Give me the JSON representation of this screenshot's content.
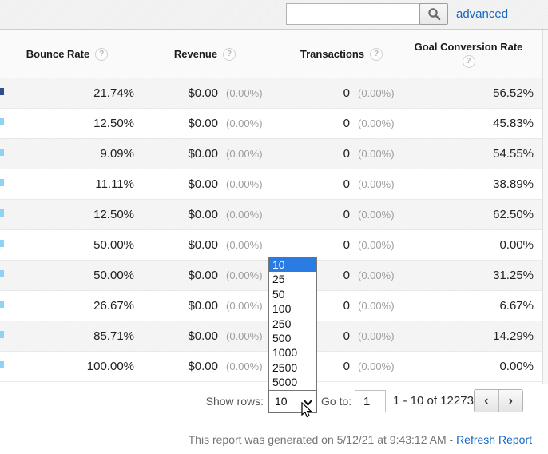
{
  "topbar": {
    "search_value": "",
    "search_placeholder": "",
    "advanced_label": "advanced",
    "search_icon": "magnifier"
  },
  "table": {
    "columns": [
      {
        "label": "Bounce Rate",
        "help_icon": "?"
      },
      {
        "label": "Revenue",
        "help_icon": "?"
      },
      {
        "label": "Transactions",
        "help_icon": "?"
      },
      {
        "label": "Goal Conversion Rate",
        "help_icon": "?"
      }
    ],
    "rows": [
      {
        "bounce_rate": "21.74%",
        "revenue": "$0.00",
        "revenue_pct": "(0.00%)",
        "transactions": "0",
        "transactions_pct": "(0.00%)",
        "goal_conversion_rate": "56.52%"
      },
      {
        "bounce_rate": "12.50%",
        "revenue": "$0.00",
        "revenue_pct": "(0.00%)",
        "transactions": "0",
        "transactions_pct": "(0.00%)",
        "goal_conversion_rate": "45.83%"
      },
      {
        "bounce_rate": "9.09%",
        "revenue": "$0.00",
        "revenue_pct": "(0.00%)",
        "transactions": "0",
        "transactions_pct": "(0.00%)",
        "goal_conversion_rate": "54.55%"
      },
      {
        "bounce_rate": "11.11%",
        "revenue": "$0.00",
        "revenue_pct": "(0.00%)",
        "transactions": "0",
        "transactions_pct": "(0.00%)",
        "goal_conversion_rate": "38.89%"
      },
      {
        "bounce_rate": "12.50%",
        "revenue": "$0.00",
        "revenue_pct": "(0.00%)",
        "transactions": "0",
        "transactions_pct": "(0.00%)",
        "goal_conversion_rate": "62.50%"
      },
      {
        "bounce_rate": "50.00%",
        "revenue": "$0.00",
        "revenue_pct": "(0.00%)",
        "transactions": "0",
        "transactions_pct": "(0.00%)",
        "goal_conversion_rate": "0.00%"
      },
      {
        "bounce_rate": "50.00%",
        "revenue": "$0.00",
        "revenue_pct": "(0.00%)",
        "transactions": "0",
        "transactions_pct": "(0.00%)",
        "goal_conversion_rate": "31.25%"
      },
      {
        "bounce_rate": "26.67%",
        "revenue": "$0.00",
        "revenue_pct": "(0.00%)",
        "transactions": "0",
        "transactions_pct": "(0.00%)",
        "goal_conversion_rate": "6.67%"
      },
      {
        "bounce_rate": "85.71%",
        "revenue": "$0.00",
        "revenue_pct": "(0.00%)",
        "transactions": "0",
        "transactions_pct": "(0.00%)",
        "goal_conversion_rate": "14.29%"
      },
      {
        "bounce_rate": "100.00%",
        "revenue": "$0.00",
        "revenue_pct": "(0.00%)",
        "transactions": "0",
        "transactions_pct": "(0.00%)",
        "goal_conversion_rate": "0.00%"
      }
    ]
  },
  "pagination": {
    "show_rows_label": "Show rows:",
    "show_rows_value": "10",
    "options": [
      "10",
      "25",
      "50",
      "100",
      "250",
      "500",
      "1000",
      "2500",
      "5000"
    ],
    "selected_option": "10",
    "goto_label": "Go to:",
    "goto_value": "1",
    "range_text": "1 - 10 of 12273",
    "prev_icon": "‹",
    "next_icon": "›"
  },
  "footer": {
    "generated_text": "This report was generated on 5/12/21 at 9:43:12 AM - ",
    "refresh_link_label": "Refresh Report"
  },
  "colors": {
    "link_blue": "#1667c1",
    "dropdown_highlight": "#2b7ce2",
    "fragment_light": "#8fd2f2",
    "fragment_dark": "#2e4f8e",
    "row_stripe": "#f5f5f5"
  }
}
